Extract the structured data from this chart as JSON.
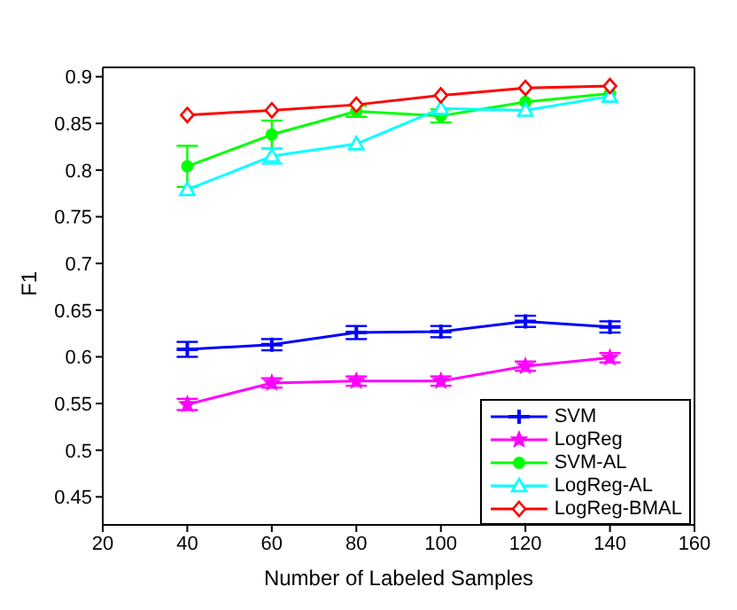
{
  "chart_data": {
    "type": "line",
    "xlabel": "Number of Labeled Samples",
    "ylabel": "F1",
    "x": [
      40,
      60,
      80,
      100,
      120,
      140
    ],
    "xlim": [
      20,
      160
    ],
    "xticks": [
      20,
      40,
      60,
      80,
      100,
      120,
      140,
      160
    ],
    "ylim": [
      0.42,
      0.91
    ],
    "yticks": [
      0.45,
      0.5,
      0.55,
      0.6,
      0.65,
      0.7,
      0.75,
      0.8,
      0.85,
      0.9
    ],
    "grid": false,
    "legend": "bottom right",
    "series": [
      {
        "name": "SVM",
        "color": "#0000ff",
        "marker": "cross",
        "values": [
          0.608,
          0.613,
          0.626,
          0.627,
          0.638,
          0.632
        ],
        "errors": [
          0.008,
          0.006,
          0.007,
          0.006,
          0.006,
          0.006
        ]
      },
      {
        "name": "LogReg",
        "color": "#ff00ff",
        "marker": "star",
        "values": [
          0.549,
          0.572,
          0.574,
          0.574,
          0.59,
          0.599
        ],
        "errors": [
          0.006,
          0.005,
          0.005,
          0.005,
          0.005,
          0.005
        ]
      },
      {
        "name": "SVM-AL",
        "color": "#00ff00",
        "marker": "circle",
        "values": [
          0.804,
          0.838,
          0.863,
          0.858,
          0.873,
          0.882
        ],
        "errors": [
          0.022,
          0.015,
          0.006,
          0.007,
          null,
          null
        ]
      },
      {
        "name": "LogReg-AL",
        "color": "#00ffff",
        "marker": "triangle",
        "values": [
          0.779,
          0.815,
          0.828,
          0.866,
          0.864,
          0.879
        ],
        "errors": [
          null,
          0.008,
          null,
          null,
          null,
          null
        ]
      },
      {
        "name": "LogReg-BMAL",
        "color": "#ff0000",
        "marker": "diamond",
        "values": [
          0.859,
          0.864,
          0.87,
          0.88,
          0.888,
          0.89
        ]
      }
    ]
  }
}
